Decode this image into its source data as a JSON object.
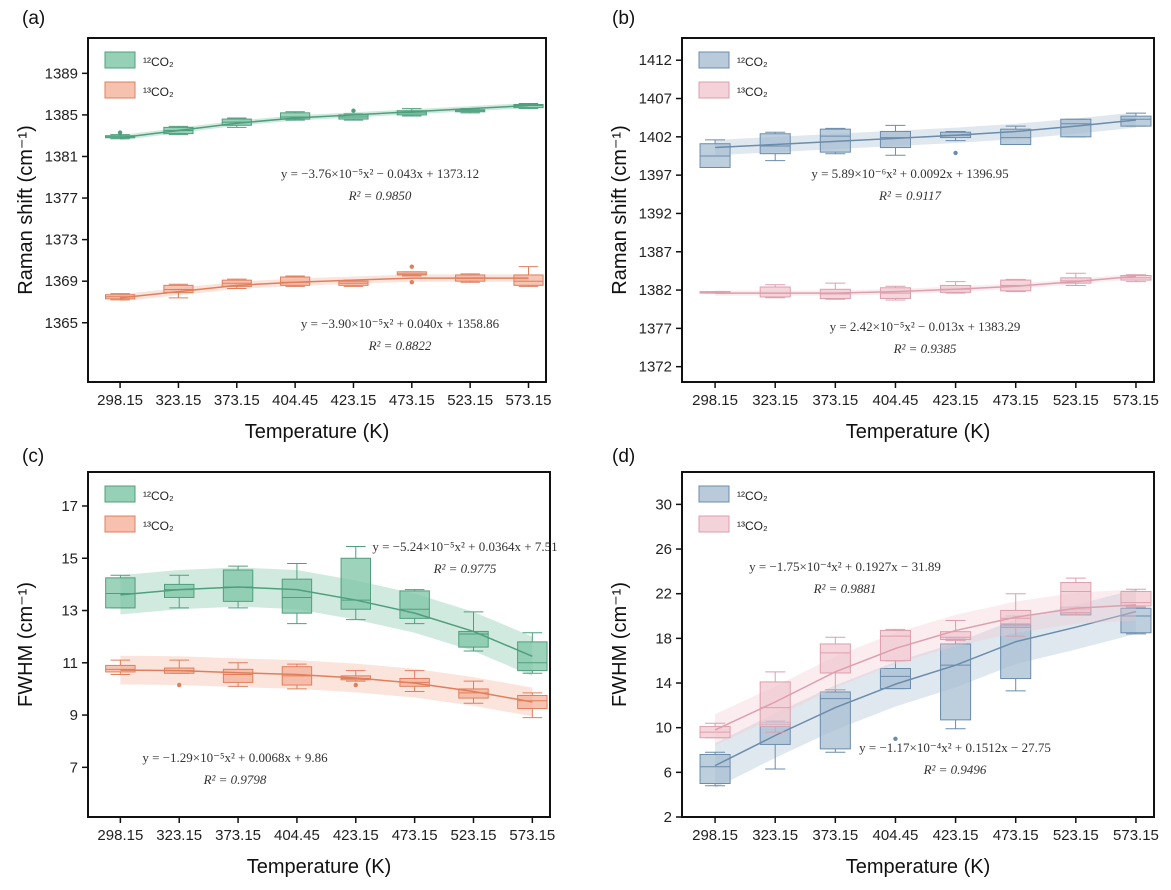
{
  "chart_data": [
    {
      "panel_label": "(a)",
      "type": "box",
      "xlabel": "Temperature (K)",
      "ylabel": "Raman shift (cm⁻¹)",
      "categories": [
        "298.15",
        "323.15",
        "373.15",
        "404.45",
        "423.15",
        "473.15",
        "523.15",
        "573.15"
      ],
      "yticks": [
        1365,
        1369,
        1373,
        1377,
        1381,
        1385,
        1389
      ],
      "ylim": [
        1359.3,
        1392.4
      ],
      "series": [
        {
          "name": "¹²CO₂",
          "color": "#7cc4a4",
          "line": "#4f9f7e",
          "boxes": [
            [
              1382.7,
              1382.8,
              1382.9,
              1383.0,
              1383.1
            ],
            [
              1383.1,
              1383.2,
              1383.5,
              1383.8,
              1383.9
            ],
            [
              1383.8,
              1384.0,
              1384.3,
              1384.6,
              1384.7
            ],
            [
              1384.5,
              1384.6,
              1384.8,
              1385.2,
              1385.3
            ],
            [
              1384.5,
              1384.6,
              1384.8,
              1385.0,
              1385.1
            ],
            [
              1384.9,
              1385.0,
              1385.2,
              1385.4,
              1385.6
            ],
            [
              1385.2,
              1385.3,
              1385.4,
              1385.5,
              1385.6
            ],
            [
              1385.6,
              1385.7,
              1385.9,
              1386.0,
              1386.1
            ]
          ],
          "outliers": [
            [
              0,
              1383.3
            ],
            [
              4,
              1385.4
            ]
          ],
          "fit": [
            1382.8,
            1383.5,
            1384.2,
            1384.7,
            1385.0,
            1385.3,
            1385.6,
            1385.9
          ],
          "equation": "y = −3.76×10⁻⁵x² − 0.043x + 1373.12",
          "r2": "R² = 0.9850"
        },
        {
          "name": "¹³CO₂",
          "color": "#f4b29a",
          "line": "#e07f5c",
          "boxes": [
            [
              1367.2,
              1367.3,
              1367.5,
              1367.7,
              1367.8
            ],
            [
              1367.4,
              1367.9,
              1368.2,
              1368.6,
              1368.7
            ],
            [
              1368.3,
              1368.5,
              1368.8,
              1369.1,
              1369.2
            ],
            [
              1368.5,
              1368.6,
              1368.9,
              1369.4,
              1369.5
            ],
            [
              1368.5,
              1368.6,
              1368.8,
              1369.0,
              1369.1
            ],
            [
              1369.5,
              1369.6,
              1369.7,
              1369.9,
              1369.9
            ],
            [
              1368.9,
              1369.0,
              1369.3,
              1369.6,
              1369.7
            ],
            [
              1368.5,
              1368.6,
              1369.0,
              1369.6,
              1370.4
            ]
          ],
          "outliers": [
            [
              5,
              1370.4
            ],
            [
              5,
              1368.9
            ]
          ],
          "fit": [
            1367.4,
            1368.0,
            1368.6,
            1368.9,
            1369.1,
            1369.3,
            1369.3,
            1369.3
          ],
          "equation": "y = −3.90×10⁻⁵x² + 0.040x + 1358.86",
          "r2": "R² = 0.8822"
        }
      ]
    },
    {
      "panel_label": "(b)",
      "type": "box",
      "xlabel": "Temperature (K)",
      "ylabel": "Raman shift (cm⁻¹)",
      "categories": [
        "298.15",
        "323.15",
        "373.15",
        "404.45",
        "423.15",
        "473.15",
        "523.15",
        "573.15"
      ],
      "yticks": [
        1372,
        1377,
        1382,
        1387,
        1392,
        1397,
        1402,
        1407,
        1412
      ],
      "ylim": [
        1370,
        1414.9
      ],
      "series": [
        {
          "name": "¹²CO₂",
          "color": "#a7bdd2",
          "line": "#6b8cab",
          "boxes": [
            [
              1398.0,
              1398.0,
              1399.5,
              1401.1,
              1401.6
            ],
            [
              1398.9,
              1399.8,
              1400.8,
              1402.4,
              1402.6
            ],
            [
              1399.8,
              1400.0,
              1402.1,
              1403.0,
              1403.1
            ],
            [
              1399.6,
              1400.6,
              1401.9,
              1402.7,
              1403.5
            ],
            [
              1401.5,
              1401.9,
              1402.2,
              1402.6,
              1402.7
            ],
            [
              1401.0,
              1401.0,
              1401.9,
              1403.0,
              1403.4
            ],
            [
              1402.0,
              1402.0,
              1403.7,
              1404.3,
              1404.3
            ],
            [
              1403.4,
              1403.4,
              1404.3,
              1404.7,
              1405.1
            ]
          ],
          "outliers": [
            [
              4,
              1399.9
            ]
          ],
          "fit": [
            1400.6,
            1401.0,
            1401.4,
            1401.8,
            1402.2,
            1402.7,
            1403.4,
            1404.2
          ],
          "equation": "y = 5.89×10⁻⁶x² + 0.0092x + 1396.95",
          "r2": "R² = 0.9117"
        },
        {
          "name": "¹³CO₂",
          "color": "#f0c8d0",
          "line": "#dd9fae",
          "boxes": [
            [
              1381.6,
              1381.6,
              1381.7,
              1381.8,
              1381.8
            ],
            [
              1381.0,
              1381.1,
              1381.6,
              1382.4,
              1382.7
            ],
            [
              1380.8,
              1380.9,
              1381.5,
              1382.1,
              1382.9
            ],
            [
              1380.7,
              1380.9,
              1381.6,
              1382.3,
              1382.5
            ],
            [
              1381.6,
              1381.7,
              1382.1,
              1382.6,
              1383.1
            ],
            [
              1381.8,
              1381.9,
              1382.6,
              1383.3,
              1383.4
            ],
            [
              1382.6,
              1382.9,
              1383.2,
              1383.6,
              1384.2
            ],
            [
              1383.1,
              1383.3,
              1383.6,
              1383.9,
              1384.0
            ]
          ],
          "outliers": [],
          "fit": [
            1381.6,
            1381.6,
            1381.6,
            1381.8,
            1382.1,
            1382.5,
            1383.1,
            1383.8
          ],
          "equation": "y = 2.42×10⁻⁵x² − 0.013x + 1383.29",
          "r2": "R² = 0.9385"
        }
      ]
    },
    {
      "panel_label": "(c)",
      "type": "box",
      "xlabel": "Temperature (K)",
      "ylabel": "FWHM (cm⁻¹)",
      "categories": [
        "298.15",
        "323.15",
        "373.15",
        "404.45",
        "423.15",
        "473.15",
        "523.15",
        "573.15"
      ],
      "yticks": [
        7,
        9,
        11,
        13,
        15,
        17
      ],
      "ylim": [
        5.1,
        18.3
      ],
      "series": [
        {
          "name": "¹²CO₂",
          "color": "#7cc4a4",
          "line": "#4f9f7e",
          "boxes": [
            [
              13.1,
              13.1,
              13.65,
              14.25,
              14.35
            ],
            [
              13.1,
              13.5,
              13.8,
              14.0,
              14.35
            ],
            [
              13.1,
              13.35,
              13.9,
              14.55,
              14.7
            ],
            [
              12.5,
              12.9,
              13.5,
              14.2,
              14.8
            ],
            [
              12.65,
              13.05,
              13.4,
              15.0,
              15.45
            ],
            [
              12.5,
              12.7,
              13.05,
              13.75,
              13.8
            ],
            [
              11.45,
              11.6,
              12.1,
              12.2,
              12.95
            ],
            [
              10.6,
              10.7,
              11.0,
              11.8,
              12.15
            ]
          ],
          "outliers": [],
          "fit": [
            13.6,
            13.8,
            13.9,
            13.8,
            13.4,
            12.9,
            12.2,
            11.25
          ],
          "equation": "y = −5.24×10⁻⁵x² + 0.0364x + 7.51",
          "r2": "R² = 0.9775"
        },
        {
          "name": "¹³CO₂",
          "color": "#f4b29a",
          "line": "#e07f5c",
          "boxes": [
            [
              10.55,
              10.65,
              10.75,
              10.9,
              11.1
            ],
            [
              10.6,
              10.6,
              10.7,
              10.8,
              11.1
            ],
            [
              10.1,
              10.25,
              10.55,
              10.75,
              11.0
            ],
            [
              10.0,
              10.15,
              10.5,
              10.85,
              10.95
            ],
            [
              10.3,
              10.35,
              10.4,
              10.5,
              10.7
            ],
            [
              9.9,
              10.1,
              10.25,
              10.4,
              10.7
            ],
            [
              9.45,
              9.65,
              9.85,
              10.0,
              10.3
            ],
            [
              8.9,
              9.25,
              9.55,
              9.75,
              9.85
            ]
          ],
          "outliers": [
            [
              1,
              10.15
            ],
            [
              4,
              10.15
            ]
          ],
          "fit": [
            10.72,
            10.7,
            10.62,
            10.55,
            10.42,
            10.22,
            9.9,
            9.5
          ],
          "equation": "y = −1.29×10⁻⁵x² + 0.0068x + 9.86",
          "r2": "R² = 0.9798"
        }
      ]
    },
    {
      "panel_label": "(d)",
      "type": "box",
      "xlabel": "Temperature (K)",
      "ylabel": "FWHM (cm⁻¹)",
      "categories": [
        "298.15",
        "323.15",
        "373.15",
        "404.45",
        "423.15",
        "473.15",
        "523.15",
        "573.15"
      ],
      "yticks": [
        2,
        6,
        10,
        14,
        18,
        22,
        26,
        30
      ],
      "ylim": [
        2,
        32.9
      ],
      "series": [
        {
          "name": "¹²CO₂",
          "color": "#a7bdd2",
          "line": "#6b8cab",
          "boxes": [
            [
              4.8,
              5.0,
              6.5,
              7.6,
              7.8
            ],
            [
              6.3,
              8.5,
              10.3,
              10.5,
              10.6
            ],
            [
              7.8,
              8.1,
              12.6,
              13.2,
              13.4
            ],
            [
              13.5,
              13.5,
              14.6,
              15.3,
              16.0
            ],
            [
              9.9,
              10.7,
              15.6,
              17.5,
              18.0
            ],
            [
              13.3,
              14.4,
              19.0,
              19.2,
              20.0
            ],
            [
              20.1,
              20.1,
              20.6,
              20.8,
              20.8
            ],
            [
              18.4,
              18.5,
              20.0,
              20.7,
              20.7
            ]
          ],
          "outliers": [
            [
              3,
              9.0
            ]
          ],
          "fit": [
            6.6,
            9.3,
            11.8,
            13.9,
            15.6,
            17.7,
            19.0,
            20.4
          ],
          "equation": "y = −1.17×10⁻⁴x² + 0.1512x − 27.75",
          "r2": "R² = 0.9496"
        },
        {
          "name": "¹³CO₂",
          "color": "#f0c8d0",
          "line": "#dd9fae",
          "boxes": [
            [
              9.1,
              9.1,
              9.6,
              10.1,
              10.4
            ],
            [
              9.6,
              10.1,
              11.8,
              14.1,
              15.0
            ],
            [
              13.4,
              14.9,
              16.7,
              17.5,
              18.1
            ],
            [
              16.0,
              16.0,
              18.2,
              18.7,
              18.8
            ],
            [
              17.8,
              17.9,
              18.1,
              18.6,
              19.6
            ],
            [
              18.2,
              19.3,
              19.8,
              20.5,
              22.0
            ],
            [
              20.1,
              20.3,
              22.2,
              23.0,
              23.4
            ],
            [
              20.8,
              20.9,
              21.2,
              22.2,
              22.4
            ]
          ],
          "outliers": [],
          "fit": [
            9.8,
            12.3,
            15.0,
            17.1,
            18.7,
            19.9,
            20.7,
            21.0
          ],
          "equation": "y = −1.75×10⁻⁴x² + 0.1927x − 31.89",
          "r2": "R² = 0.9881"
        }
      ]
    }
  ]
}
